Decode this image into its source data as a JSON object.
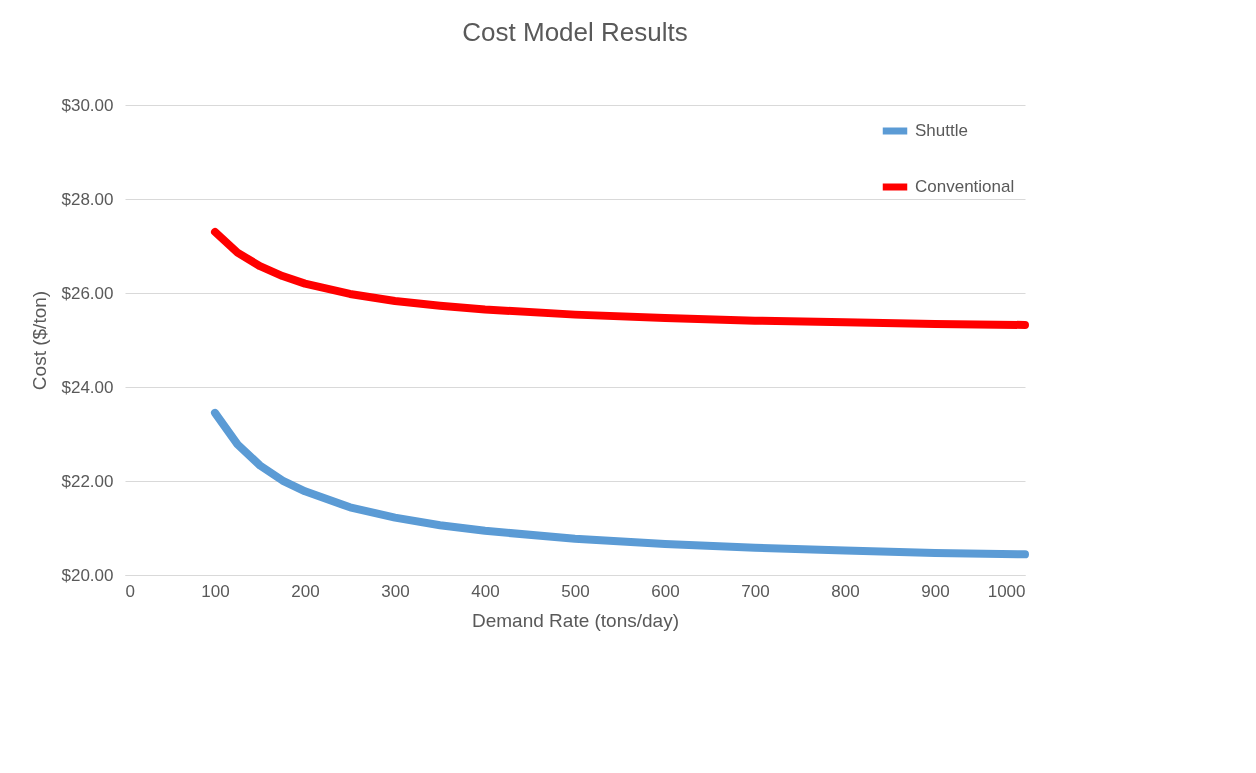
{
  "chart_data": {
    "type": "line",
    "title": "Cost Model Results",
    "xlabel": "Demand Rate (tons/day)",
    "ylabel": "Cost ($/ton)",
    "x": [
      100,
      125,
      150,
      175,
      200,
      250,
      300,
      350,
      400,
      500,
      600,
      700,
      800,
      900,
      1000
    ],
    "series": [
      {
        "name": "Shuttle",
        "color": "#5b9bd5",
        "values": [
          23.45,
          22.78,
          22.33,
          22.01,
          21.78,
          21.44,
          21.22,
          21.06,
          20.94,
          20.77,
          20.66,
          20.58,
          20.52,
          20.47,
          20.44
        ]
      },
      {
        "name": "Conventional",
        "color": "#ff0000",
        "values": [
          27.3,
          26.86,
          26.57,
          26.36,
          26.2,
          25.98,
          25.83,
          25.73,
          25.65,
          25.54,
          25.47,
          25.41,
          25.38,
          25.34,
          25.32
        ]
      }
    ],
    "xlim": [
      0,
      1000
    ],
    "xticks": [
      0,
      100,
      200,
      300,
      400,
      500,
      600,
      700,
      800,
      900,
      1000
    ],
    "ylim": [
      20,
      30
    ],
    "yticks": [
      {
        "value": 20,
        "label": "$20.00"
      },
      {
        "value": 22,
        "label": "$22.00"
      },
      {
        "value": 24,
        "label": "$24.00"
      },
      {
        "value": 26,
        "label": "$26.00"
      },
      {
        "value": 28,
        "label": "$28.00"
      },
      {
        "value": 30,
        "label": "$30.00"
      }
    ],
    "grid": "y",
    "legend": "top right",
    "marker": "none",
    "line_style": "solid"
  }
}
